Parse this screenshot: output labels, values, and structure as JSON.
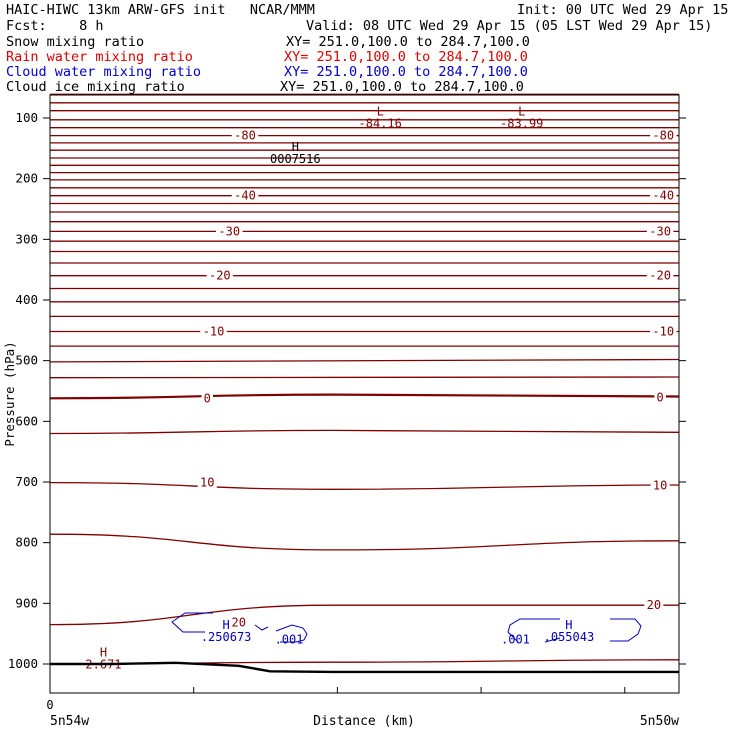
{
  "header": {
    "line1_left": "HAIC-HIWC 13km ARW-GFS init   NCAR/MMM",
    "line1_right": "Init: 00 UTC Wed 29 Apr 15",
    "line2_left": "Fcst:    8 h",
    "line2_right": "Valid: 08 UTC Wed 29 Apr 15 (05 LST Wed 29 Apr 15)"
  },
  "fields": [
    {
      "name": "Snow mixing ratio",
      "xy": "XY= 251.0,100.0 to 284.7,100.0",
      "color": "#000000"
    },
    {
      "name": "Rain water mixing ratio",
      "xy": "XY= 251.0,100.0 to 284.7,100.0",
      "color": "#e00000"
    },
    {
      "name": "Cloud water mixing ratio",
      "xy": "XY= 251.0,100.0 to 284.7,100.0",
      "color": "#0000d0"
    },
    {
      "name": "Cloud ice mixing ratio",
      "xy": "XY= 251.0,100.0 to 284.7,100.0",
      "color": "#000000"
    }
  ],
  "chart_data": {
    "type": "line",
    "xlabel": "Distance (km)",
    "ylabel": "Pressure (hPa)",
    "x_ticks": [
      {
        "value": 0,
        "label": "0"
      }
    ],
    "x_endpoint_labels": {
      "left": "5n54w",
      "right": "5n50w"
    },
    "y_ticks": [
      100,
      200,
      300,
      400,
      500,
      600,
      700,
      800,
      900,
      1000
    ],
    "ylim": [
      1050,
      50
    ],
    "colors": {
      "temperature": "#800000",
      "cloud_water": "#0000c0",
      "terrain": "#000000"
    },
    "isotherms": [
      {
        "p": [
          61,
          61
        ]
      },
      {
        "p": [
          75,
          75
        ]
      },
      {
        "p": [
          88,
          88
        ]
      },
      {
        "p": [
          103,
          103
        ]
      },
      {
        "p": [
          116,
          116
        ]
      },
      {
        "p": [
          129,
          129
        ]
      },
      {
        "p": [
          141,
          141
        ]
      },
      {
        "p": [
          153,
          153
        ]
      },
      {
        "p": [
          166,
          166
        ]
      },
      {
        "p": [
          178,
          178
        ]
      },
      {
        "p": [
          190,
          190
        ]
      },
      {
        "p": [
          202,
          202
        ]
      },
      {
        "p": [
          215,
          215
        ]
      },
      {
        "p": [
          228,
          228
        ]
      },
      {
        "p": [
          241,
          241
        ]
      },
      {
        "p": [
          255,
          255
        ]
      },
      {
        "p": [
          271,
          271
        ]
      },
      {
        "p": [
          287,
          287
        ]
      },
      {
        "p": [
          303,
          303
        ]
      },
      {
        "p": [
          320,
          320
        ]
      },
      {
        "p": [
          339,
          339
        ]
      },
      {
        "p": [
          360,
          360
        ]
      },
      {
        "p": [
          381,
          381
        ]
      },
      {
        "p": [
          403,
          403
        ]
      },
      {
        "p": [
          427,
          427
        ]
      },
      {
        "p": [
          452,
          452
        ]
      },
      {
        "p": [
          476,
          476
        ]
      },
      {
        "p": [
          502,
          498
        ]
      },
      {
        "p": [
          528,
          527
        ]
      },
      {
        "p": [
          562,
          556,
          559
        ]
      },
      {
        "p": [
          620,
          615,
          618
        ]
      },
      {
        "p": [
          701,
          712,
          705
        ]
      },
      {
        "p": [
          786,
          812,
          797
        ]
      },
      {
        "p": [
          935,
          903,
          903
        ]
      },
      {
        "p": [
          1000,
          997,
          993
        ]
      }
    ],
    "contour_labels": [
      {
        "text": "-80",
        "x": 0.31,
        "p": 129
      },
      {
        "text": "-80",
        "x": 0.975,
        "p": 129
      },
      {
        "text": "-40",
        "x": 0.31,
        "p": 228
      },
      {
        "text": "-40",
        "x": 0.975,
        "p": 228
      },
      {
        "text": "-30",
        "x": 0.285,
        "p": 287
      },
      {
        "text": "-30",
        "x": 0.97,
        "p": 287
      },
      {
        "text": "-20",
        "x": 0.27,
        "p": 360
      },
      {
        "text": "-20",
        "x": 0.97,
        "p": 360
      },
      {
        "text": "-10",
        "x": 0.26,
        "p": 452
      },
      {
        "text": "-10",
        "x": 0.975,
        "p": 452
      },
      {
        "text": "0",
        "x": 0.25,
        "p": 562
      },
      {
        "text": "0",
        "x": 0.97,
        "p": 561
      },
      {
        "text": "10",
        "x": 0.25,
        "p": 701
      },
      {
        "text": "10",
        "x": 0.97,
        "p": 706
      },
      {
        "text": "20",
        "x": 0.3,
        "p": 932
      },
      {
        "text": "20",
        "x": 0.96,
        "p": 903
      }
    ],
    "extrema": [
      {
        "mark": "L",
        "value": "-84.16",
        "x": 0.525,
        "p": 96,
        "color": "#800000"
      },
      {
        "mark": "L",
        "value": "-83.99",
        "x": 0.75,
        "p": 96,
        "color": "#800000"
      },
      {
        "mark": "H",
        "value": "0007516",
        "x": 0.39,
        "p": 154,
        "color": "#000000"
      },
      {
        "mark": "H",
        "value": "2.671",
        "x": 0.085,
        "p": 988,
        "color": "#800000"
      },
      {
        "mark": "H",
        "value": ".250673",
        "x": 0.28,
        "p": 942,
        "color": "#0000c0"
      },
      {
        "mark": "H",
        "value": ".055043",
        "x": 0.825,
        "p": 942,
        "color": "#0000c0"
      }
    ],
    "cloud_labels": [
      {
        "text": ".001",
        "x": 0.38,
        "p": 960
      },
      {
        "text": ".001",
        "x": 0.74,
        "p": 960
      }
    ],
    "terrain": {
      "x": [
        0,
        0.1,
        0.2,
        0.3,
        0.35,
        0.45,
        1.0
      ],
      "p": [
        1000,
        1000,
        998,
        1003,
        1012,
        1013,
        1013
      ]
    }
  }
}
